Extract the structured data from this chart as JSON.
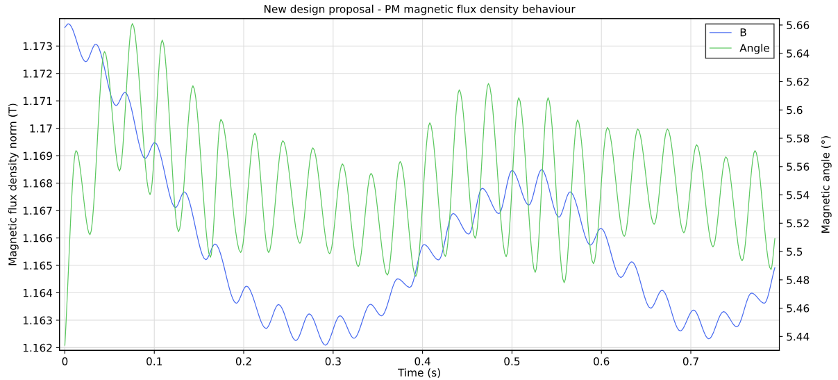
{
  "chart_data": {
    "type": "line",
    "title": "New design proposal - PM magnetic flux density behaviour",
    "xlabel": "Time (s)",
    "ylabel": "Magnetic flux density norm (T)",
    "y2label": "Magnetic angle (°)",
    "xlim": [
      -0.006,
      0.799
    ],
    "xticks": [
      0,
      0.1,
      0.2,
      0.3,
      0.4,
      0.5,
      0.6,
      0.7
    ],
    "ylim": [
      1.1619,
      1.174
    ],
    "yticks": [
      1.162,
      1.163,
      1.164,
      1.165,
      1.166,
      1.167,
      1.168,
      1.169,
      1.17,
      1.171,
      1.172,
      1.173
    ],
    "y2lim": [
      5.4302,
      5.6645
    ],
    "y2ticks": [
      5.44,
      5.46,
      5.48,
      5.5,
      5.52,
      5.54,
      5.56,
      5.58,
      5.6,
      5.62,
      5.64,
      5.66
    ],
    "grid": true,
    "legend": "top right",
    "marker": "none",
    "line_style": "solid",
    "series": [
      {
        "name": "B",
        "color": "#4a6cf0",
        "x": [
          0,
          0.004,
          0.0234,
          0.0346,
          0.0573,
          0.0672,
          0.0898,
          0.1005,
          0.1237,
          0.1336,
          0.1576,
          0.168,
          0.1917,
          0.2031,
          0.225,
          0.239,
          0.2583,
          0.2732,
          0.2914,
          0.3078,
          0.3234,
          0.3417,
          0.3542,
          0.3721,
          0.3859,
          0.4016,
          0.418,
          0.4341,
          0.4516,
          0.4667,
          0.4854,
          0.5,
          0.5188,
          0.5331,
          0.5525,
          0.565,
          0.5877,
          0.5995,
          0.6217,
          0.634,
          0.6551,
          0.6679,
          0.6882,
          0.7031,
          0.7201,
          0.7366,
          0.7514,
          0.7679,
          0.7822,
          0.794
        ],
        "values": [
          1.17368,
          1.17381,
          1.17243,
          1.17307,
          1.17083,
          1.17131,
          1.1689,
          1.16948,
          1.16711,
          1.16768,
          1.16521,
          1.16578,
          1.16362,
          1.16424,
          1.1627,
          1.16357,
          1.16226,
          1.16323,
          1.16209,
          1.16316,
          1.16234,
          1.16358,
          1.16316,
          1.16451,
          1.1642,
          1.16576,
          1.1652,
          1.16689,
          1.16614,
          1.16781,
          1.16689,
          1.16846,
          1.1672,
          1.16849,
          1.16676,
          1.16768,
          1.16574,
          1.16635,
          1.16456,
          1.16513,
          1.16344,
          1.16409,
          1.16261,
          1.16337,
          1.16232,
          1.16331,
          1.16276,
          1.16399,
          1.16362,
          1.16492
        ]
      },
      {
        "name": "Angle",
        "color": "#5cc860",
        "axis": "y2",
        "x": [
          0,
          0.0125,
          0.0281,
          0.0443,
          0.0612,
          0.0755,
          0.0953,
          0.1089,
          0.1271,
          0.1432,
          0.1628,
          0.1745,
          0.1966,
          0.2125,
          0.2279,
          0.2438,
          0.2628,
          0.2773,
          0.2961,
          0.3104,
          0.3281,
          0.3424,
          0.3607,
          0.375,
          0.3924,
          0.4081,
          0.4255,
          0.4411,
          0.4589,
          0.4737,
          0.4935,
          0.5076,
          0.526,
          0.5404,
          0.5584,
          0.5734,
          0.5911,
          0.6068,
          0.6256,
          0.6407,
          0.659,
          0.6739,
          0.6922,
          0.7065,
          0.7248,
          0.7392,
          0.7574,
          0.7718,
          0.7896,
          0.794
        ],
        "values": [
          5.4338,
          5.5713,
          5.5119,
          5.6413,
          5.5569,
          5.661,
          5.5402,
          5.6494,
          5.514,
          5.6171,
          5.496,
          5.5934,
          5.4993,
          5.5836,
          5.4993,
          5.5783,
          5.5058,
          5.5732,
          5.4984,
          5.5619,
          5.4894,
          5.5552,
          5.4834,
          5.5636,
          5.4824,
          5.5909,
          5.4965,
          5.6142,
          5.5094,
          5.6187,
          5.4963,
          5.6086,
          5.4853,
          5.6086,
          5.478,
          5.5929,
          5.4914,
          5.5876,
          5.5107,
          5.5865,
          5.5192,
          5.5865,
          5.5132,
          5.5754,
          5.5033,
          5.5669,
          5.4935,
          5.5713,
          5.4873,
          5.5091
        ]
      }
    ]
  }
}
